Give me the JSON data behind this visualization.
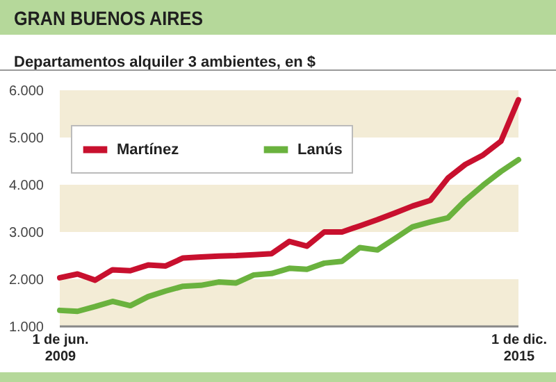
{
  "chart_data": {
    "type": "line",
    "title": "GRAN BUENOS AIRES",
    "subtitle": "Departamentos alquiler 3 ambientes, en $",
    "x": [
      "2009-06",
      "2009-09",
      "2009-12",
      "2010-03",
      "2010-06",
      "2010-09",
      "2010-12",
      "2011-03",
      "2011-06",
      "2011-09",
      "2011-12",
      "2012-03",
      "2012-06",
      "2012-09",
      "2012-12",
      "2013-03",
      "2013-06",
      "2013-09",
      "2013-12",
      "2014-03",
      "2014-06",
      "2014-09",
      "2014-12",
      "2015-03",
      "2015-06",
      "2015-09",
      "2015-12"
    ],
    "series": [
      {
        "name": "Martínez",
        "color": "#c8102e",
        "values": [
          2030,
          2110,
          1980,
          2200,
          2180,
          2300,
          2280,
          2450,
          2470,
          2490,
          2500,
          2520,
          2540,
          2800,
          2700,
          3000,
          3000,
          3130,
          3260,
          3400,
          3550,
          3670,
          4140,
          4430,
          4630,
          4920,
          5800
        ]
      },
      {
        "name": "Lanús",
        "color": "#6ab23e",
        "values": [
          1340,
          1320,
          1420,
          1530,
          1440,
          1630,
          1750,
          1850,
          1870,
          1940,
          1920,
          2090,
          2120,
          2230,
          2210,
          2340,
          2380,
          2670,
          2620,
          2860,
          3110,
          3210,
          3300,
          3670,
          3990,
          4280,
          4530
        ]
      }
    ],
    "ylim": [
      1000,
      6000
    ],
    "yticks": [
      {
        "value": 1000,
        "label": "1.000"
      },
      {
        "value": 2000,
        "label": "2.000"
      },
      {
        "value": 3000,
        "label": "3.000"
      },
      {
        "value": 4000,
        "label": "4.000"
      },
      {
        "value": 5000,
        "label": "5.000"
      },
      {
        "value": 6000,
        "label": "6.000"
      }
    ],
    "xlim": [
      "2009-06",
      "2015-12"
    ],
    "xticks": [
      {
        "value": "2009-06",
        "label": "1 de jun. 2009"
      },
      {
        "value": "2015-12",
        "label": "1 de dic. 2015"
      }
    ],
    "bands": [
      {
        "axis": "y",
        "from": 1000,
        "to": 2000,
        "color": "#f3ecd6"
      },
      {
        "axis": "y",
        "from": 3000,
        "to": 4000,
        "color": "#f3ecd6"
      },
      {
        "axis": "y",
        "from": 5000,
        "to": 6000,
        "color": "#f3ecd6"
      }
    ],
    "legend": "top left",
    "grid": false,
    "line_style": "solid",
    "marker": "none"
  }
}
